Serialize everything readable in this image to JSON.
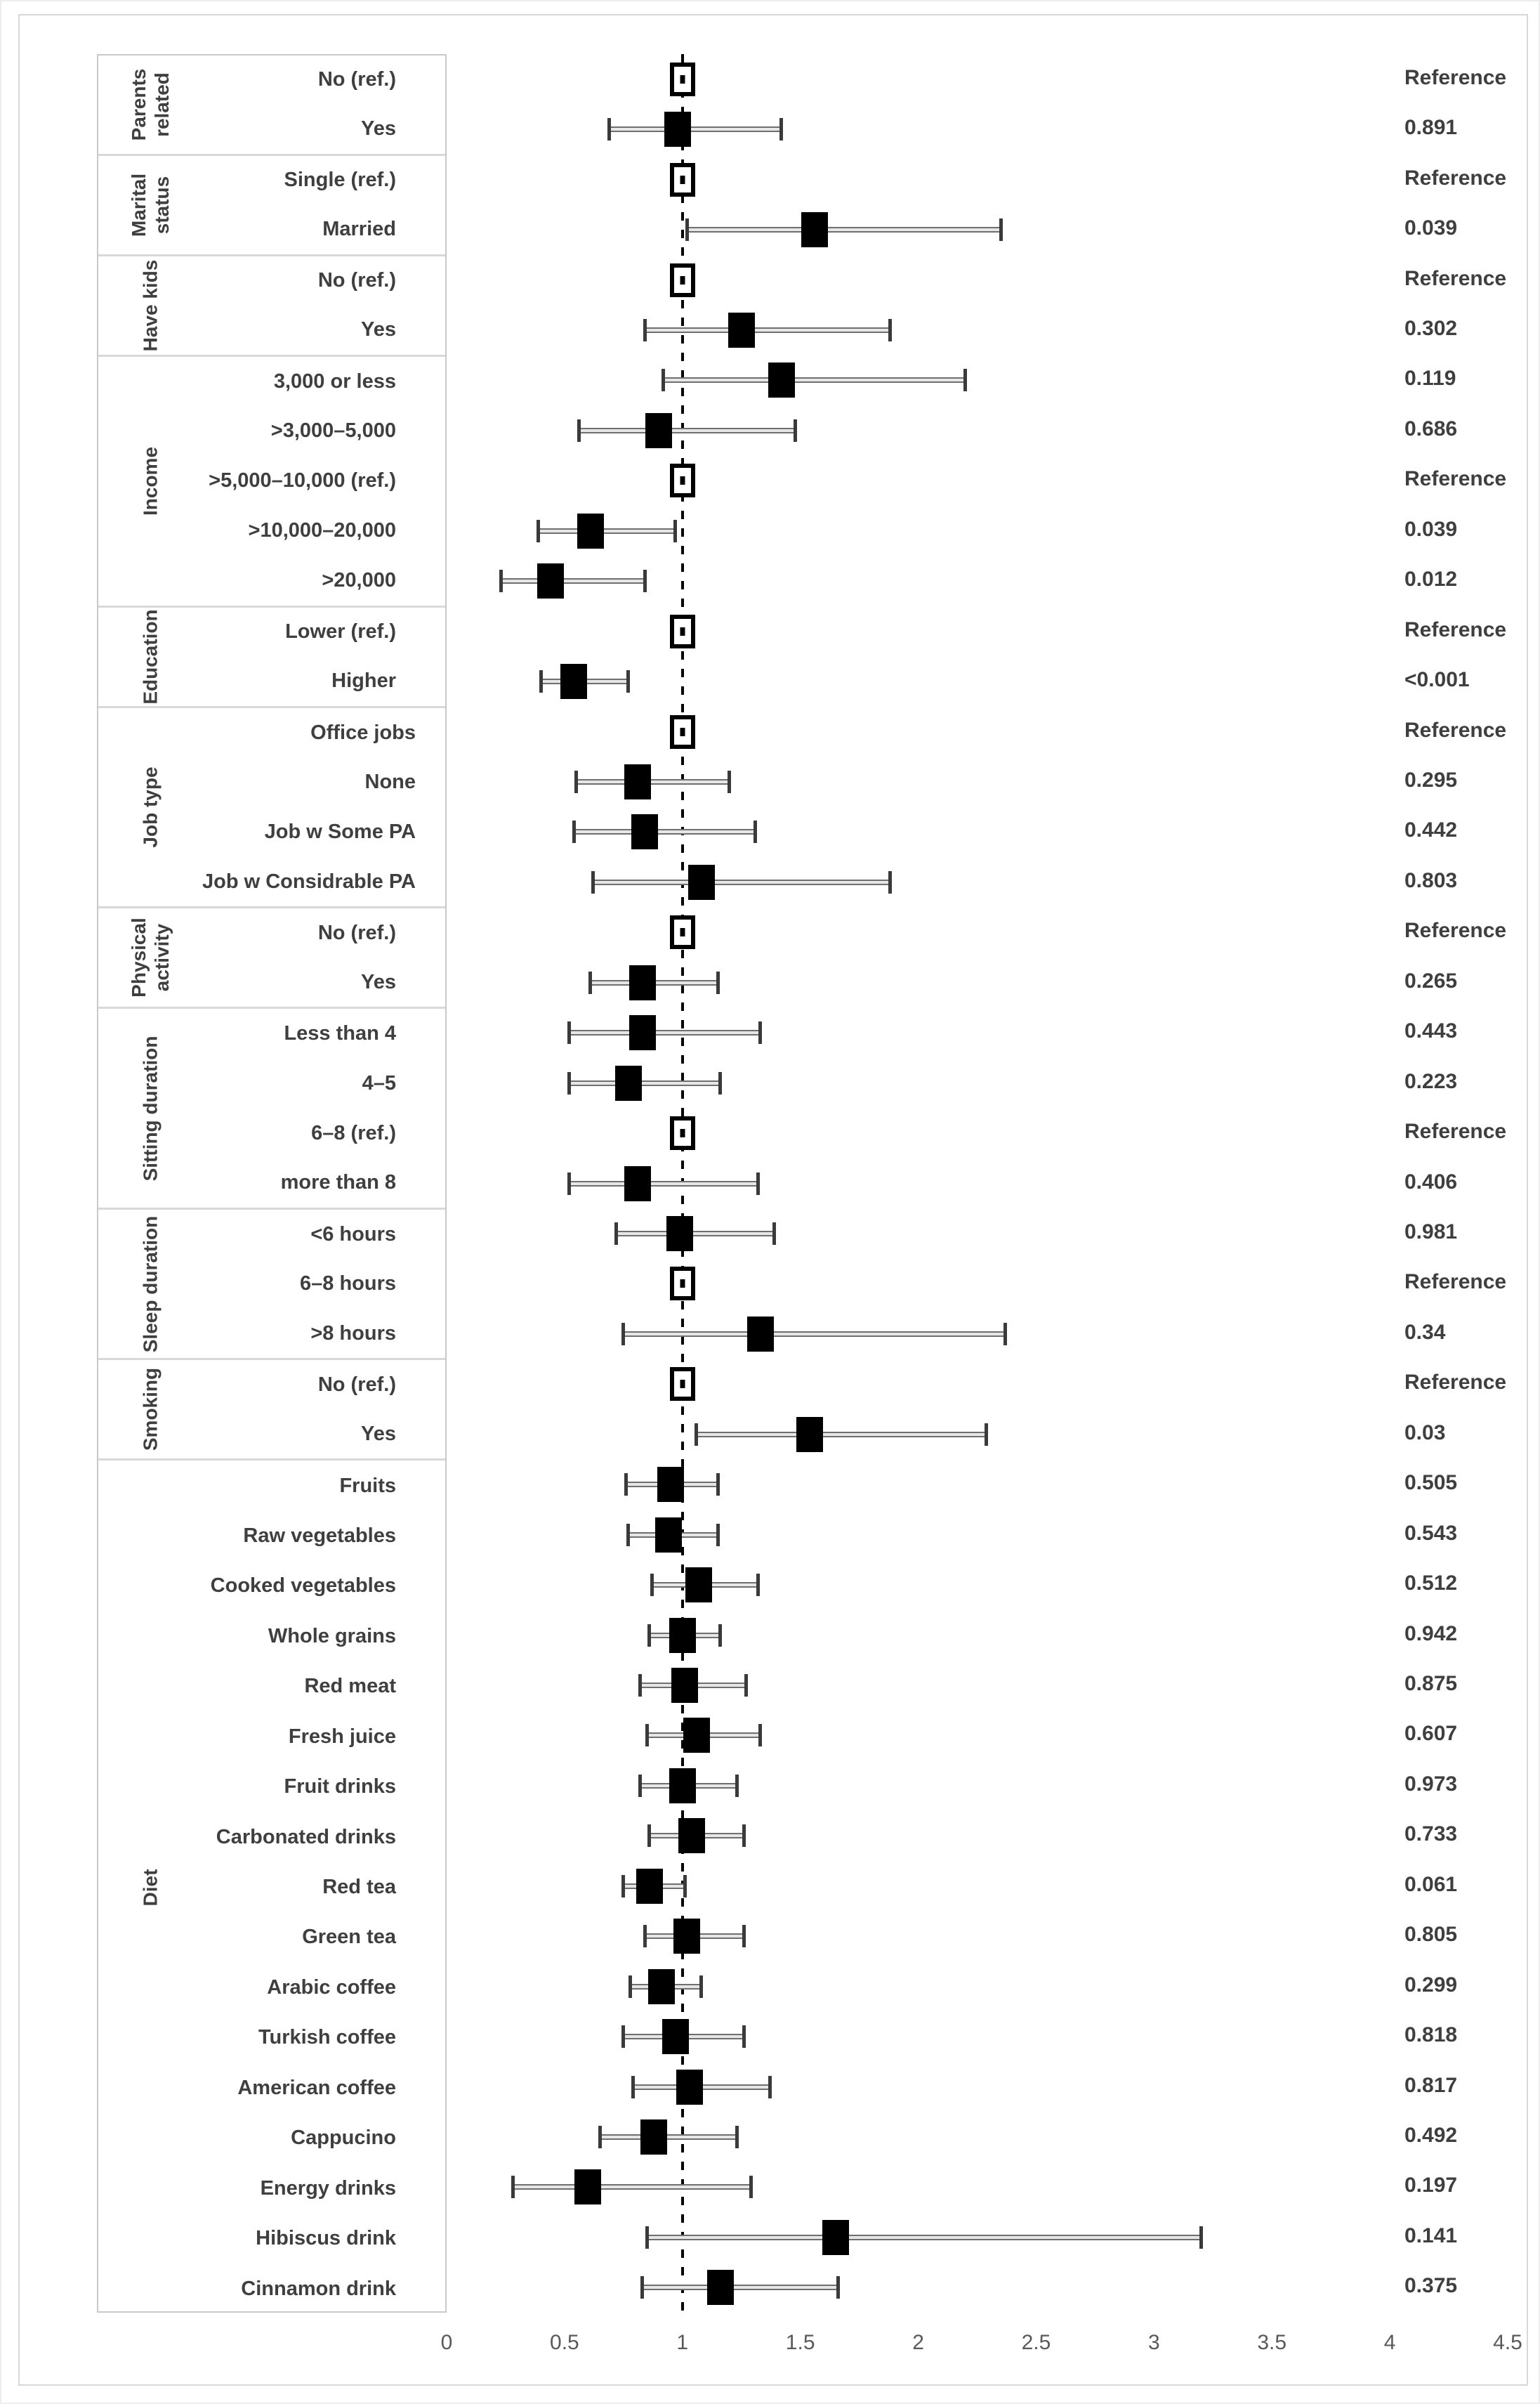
{
  "figure": {
    "kind": "forest-plot",
    "reference_label": "Reference",
    "colors": {
      "marker_fill": "#000000",
      "ref_marker_fill": "#ffffff",
      "whisker": "#6f6f6f",
      "text": "#3f3f3f",
      "axis_text": "#595959",
      "table_border": "#c9c9c9",
      "group_separator": "#d9d9d9",
      "figure_border": "#d8d8d8"
    }
  },
  "chart_data": {
    "type": "scatter",
    "subtype": "forest-plot-odds-ratios",
    "title": "",
    "xlabel": "",
    "ylabel": "",
    "grid": false,
    "legend_position": "none",
    "x_axis": {
      "min": 0,
      "max": 4.5,
      "tick_values": [
        0,
        0.5,
        1,
        1.5,
        2,
        2.5,
        3,
        3.5,
        4,
        4.5
      ],
      "tick_labels": [
        "0",
        "0.5",
        "1",
        "1.5",
        "2",
        "2.5",
        "3",
        "3.5",
        "4",
        "4.5"
      ],
      "reference_line_value": 1
    },
    "groups": [
      {
        "label": "Parents related",
        "rows": [
          {
            "label": "No (ref.)",
            "ref": true,
            "or": 1.0,
            "p": "Reference"
          },
          {
            "label": "Yes",
            "ref": false,
            "or": 0.98,
            "lo": 0.69,
            "hi": 1.42,
            "p": "0.891"
          }
        ]
      },
      {
        "label": "Marital status",
        "rows": [
          {
            "label": "Single (ref.)",
            "ref": true,
            "or": 1.0,
            "p": "Reference"
          },
          {
            "label": "Married",
            "ref": false,
            "or": 1.56,
            "lo": 1.02,
            "hi": 2.35,
            "p": "0.039"
          }
        ]
      },
      {
        "label": "Have kids",
        "rows": [
          {
            "label": "No (ref.)",
            "ref": true,
            "or": 1.0,
            "p": "Reference"
          },
          {
            "label": "Yes",
            "ref": false,
            "or": 1.25,
            "lo": 0.84,
            "hi": 1.88,
            "p": "0.302"
          }
        ]
      },
      {
        "label": "Income",
        "rows": [
          {
            "label": "3,000 or less",
            "ref": false,
            "or": 1.42,
            "lo": 0.92,
            "hi": 2.2,
            "p": "0.119"
          },
          {
            "label": ">3,000–5,000",
            "ref": false,
            "or": 0.9,
            "lo": 0.56,
            "hi": 1.48,
            "p": "0.686"
          },
          {
            "label": ">5,000–10,000 (ref.)",
            "ref": true,
            "or": 1.0,
            "p": "Reference"
          },
          {
            "label": ">10,000–20,000",
            "ref": false,
            "or": 0.61,
            "lo": 0.39,
            "hi": 0.97,
            "p": "0.039"
          },
          {
            "label": ">20,000",
            "ref": false,
            "or": 0.44,
            "lo": 0.23,
            "hi": 0.84,
            "p": "0.012"
          }
        ]
      },
      {
        "label": "Education",
        "rows": [
          {
            "label": "Lower (ref.)",
            "ref": true,
            "or": 1.0,
            "p": "Reference"
          },
          {
            "label": "Higher",
            "ref": false,
            "or": 0.54,
            "lo": 0.4,
            "hi": 0.77,
            "p": "<0.001"
          }
        ]
      },
      {
        "label": "Job type",
        "rows": [
          {
            "label": "Office jobs",
            "ref": true,
            "or": 1.0,
            "p": "Reference"
          },
          {
            "label": "None",
            "ref": false,
            "or": 0.81,
            "lo": 0.55,
            "hi": 1.2,
            "p": "0.295"
          },
          {
            "label": "Job w Some PA",
            "ref": false,
            "or": 0.84,
            "lo": 0.54,
            "hi": 1.31,
            "p": "0.442"
          },
          {
            "label": "Job w Considrable PA",
            "ref": false,
            "or": 1.08,
            "lo": 0.62,
            "hi": 1.88,
            "p": "0.803"
          }
        ]
      },
      {
        "label": "Physical activity",
        "rows": [
          {
            "label": "No (ref.)",
            "ref": true,
            "or": 1.0,
            "p": "Reference"
          },
          {
            "label": "Yes",
            "ref": false,
            "or": 0.83,
            "lo": 0.61,
            "hi": 1.15,
            "p": "0.265"
          }
        ]
      },
      {
        "label": "Sitting duration",
        "rows": [
          {
            "label": "Less than 4",
            "ref": false,
            "or": 0.83,
            "lo": 0.52,
            "hi": 1.33,
            "p": "0.443"
          },
          {
            "label": "4–5",
            "ref": false,
            "or": 0.77,
            "lo": 0.52,
            "hi": 1.16,
            "p": "0.223"
          },
          {
            "label": "6–8 (ref.)",
            "ref": true,
            "or": 1.0,
            "p": "Reference"
          },
          {
            "label": "more than  8",
            "ref": false,
            "or": 0.81,
            "lo": 0.52,
            "hi": 1.32,
            "p": "0.406"
          }
        ]
      },
      {
        "label": "Sleep duration",
        "rows": [
          {
            "label": "<6 hours",
            "ref": false,
            "or": 0.99,
            "lo": 0.72,
            "hi": 1.39,
            "p": "0.981"
          },
          {
            "label": "6–8 hours",
            "ref": true,
            "or": 1.0,
            "p": "Reference"
          },
          {
            "label": ">8 hours",
            "ref": false,
            "or": 1.33,
            "lo": 0.75,
            "hi": 2.37,
            "p": "0.34"
          }
        ]
      },
      {
        "label": "Smoking",
        "rows": [
          {
            "label": "No (ref.)",
            "ref": true,
            "or": 1.0,
            "p": "Reference"
          },
          {
            "label": "Yes",
            "ref": false,
            "or": 1.54,
            "lo": 1.06,
            "hi": 2.29,
            "p": "0.03"
          }
        ]
      },
      {
        "label": "Diet",
        "rows": [
          {
            "label": "Fruits",
            "ref": false,
            "or": 0.95,
            "lo": 0.76,
            "hi": 1.15,
            "p": "0.505"
          },
          {
            "label": "Raw vegetables",
            "ref": false,
            "or": 0.94,
            "lo": 0.77,
            "hi": 1.15,
            "p": "0.543"
          },
          {
            "label": "Cooked vegetables",
            "ref": false,
            "or": 1.07,
            "lo": 0.87,
            "hi": 1.32,
            "p": "0.512"
          },
          {
            "label": "Whole grains",
            "ref": false,
            "or": 1.0,
            "lo": 0.86,
            "hi": 1.16,
            "p": "0.942"
          },
          {
            "label": "Red meat",
            "ref": false,
            "or": 1.01,
            "lo": 0.82,
            "hi": 1.27,
            "p": "0.875"
          },
          {
            "label": "Fresh juice",
            "ref": false,
            "or": 1.06,
            "lo": 0.85,
            "hi": 1.33,
            "p": "0.607"
          },
          {
            "label": "Fruit drinks",
            "ref": false,
            "or": 1.0,
            "lo": 0.82,
            "hi": 1.23,
            "p": "0.973"
          },
          {
            "label": "Carbonated drinks",
            "ref": false,
            "or": 1.04,
            "lo": 0.86,
            "hi": 1.26,
            "p": "0.733"
          },
          {
            "label": "Red tea",
            "ref": false,
            "or": 0.86,
            "lo": 0.75,
            "hi": 1.01,
            "p": "0.061"
          },
          {
            "label": "Green tea",
            "ref": false,
            "or": 1.02,
            "lo": 0.84,
            "hi": 1.26,
            "p": "0.805"
          },
          {
            "label": "Arabic coffee",
            "ref": false,
            "or": 0.91,
            "lo": 0.78,
            "hi": 1.08,
            "p": "0.299"
          },
          {
            "label": "Turkish coffee",
            "ref": false,
            "or": 0.97,
            "lo": 0.75,
            "hi": 1.26,
            "p": "0.818"
          },
          {
            "label": "American coffee",
            "ref": false,
            "or": 1.03,
            "lo": 0.79,
            "hi": 1.37,
            "p": "0.817"
          },
          {
            "label": "Cappucino",
            "ref": false,
            "or": 0.88,
            "lo": 0.65,
            "hi": 1.23,
            "p": "0.492"
          },
          {
            "label": "Energy drinks",
            "ref": false,
            "or": 0.6,
            "lo": 0.28,
            "hi": 1.29,
            "p": "0.197"
          },
          {
            "label": "Hibiscus drink",
            "ref": false,
            "or": 1.65,
            "lo": 0.85,
            "hi": 3.2,
            "p": "0.141"
          },
          {
            "label": "Cinnamon drink",
            "ref": false,
            "or": 1.16,
            "lo": 0.83,
            "hi": 1.66,
            "p": "0.375"
          }
        ]
      }
    ]
  }
}
